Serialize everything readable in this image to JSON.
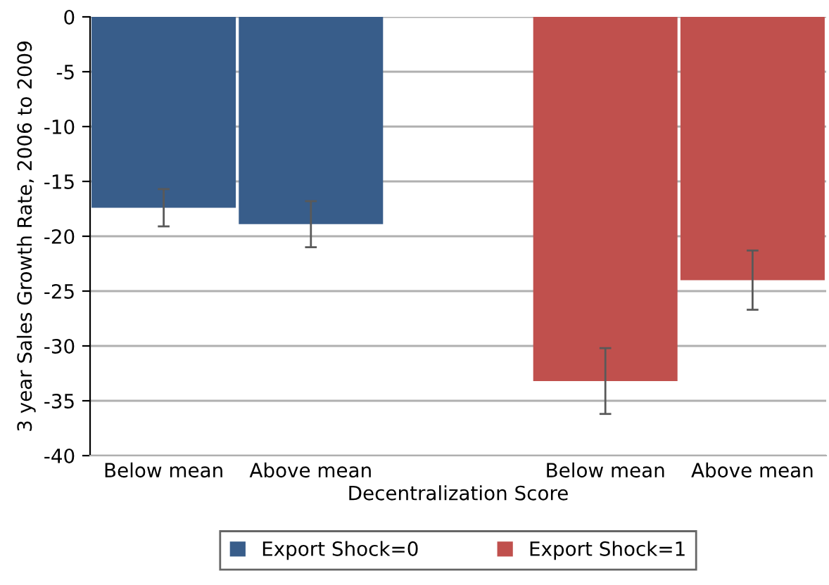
{
  "chart_data": {
    "type": "bar",
    "xlabel": "Decentralization Score",
    "ylabel": "3 year Sales Growth Rate, 2006 to 2009",
    "categories": [
      "Below mean",
      "Above mean",
      null,
      "Below mean",
      "Above mean"
    ],
    "series": [
      {
        "name": "Export Shock=0",
        "color": "#385d8a",
        "values": [
          -17.4,
          -18.9,
          null,
          null,
          null
        ],
        "errors": [
          1.7,
          2.1,
          null,
          null,
          null
        ]
      },
      {
        "name": "Export Shock=1",
        "color": "#c0504d",
        "values": [
          null,
          null,
          null,
          -33.2,
          -24.0
        ],
        "errors": [
          null,
          null,
          null,
          3.0,
          2.7
        ]
      }
    ],
    "ylim": [
      -40,
      0
    ],
    "yticks": [
      -40,
      -35,
      -30,
      -25,
      -20,
      -15,
      -10,
      -5,
      0
    ],
    "grid": "y",
    "legend": "bottom"
  }
}
